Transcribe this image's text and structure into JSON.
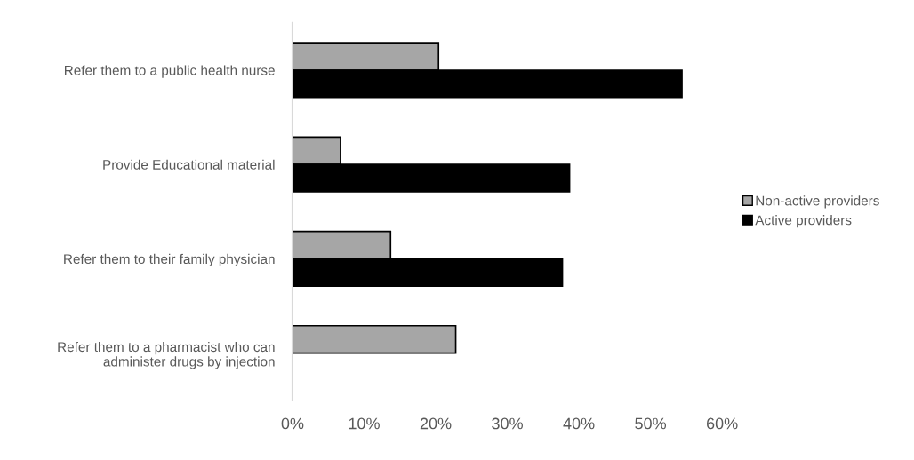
{
  "chart_data": {
    "type": "bar",
    "orientation": "horizontal",
    "categories": [
      "Refer them to a public health nurse",
      "Provide Educational material",
      "Refer them to their family physician",
      "Refer them to a pharmacist who can\nadminister drugs by injection"
    ],
    "series": [
      {
        "name": "Non-active providers",
        "color": "#a6a6a6",
        "values": [
          20.4,
          6.7,
          13.7,
          22.8
        ]
      },
      {
        "name": "Active providers",
        "color": "#000000",
        "values": [
          54.4,
          38.7,
          37.7,
          0
        ]
      }
    ],
    "xlim": [
      0,
      60
    ],
    "xticks": [
      {
        "value": 0,
        "label": "0%"
      },
      {
        "value": 10,
        "label": "10%"
      },
      {
        "value": 20,
        "label": "20%"
      },
      {
        "value": 30,
        "label": "30%"
      },
      {
        "value": 40,
        "label": "40%"
      },
      {
        "value": 50,
        "label": "50%"
      },
      {
        "value": 60,
        "label": "60%"
      }
    ],
    "grid": false,
    "legend": "right"
  }
}
